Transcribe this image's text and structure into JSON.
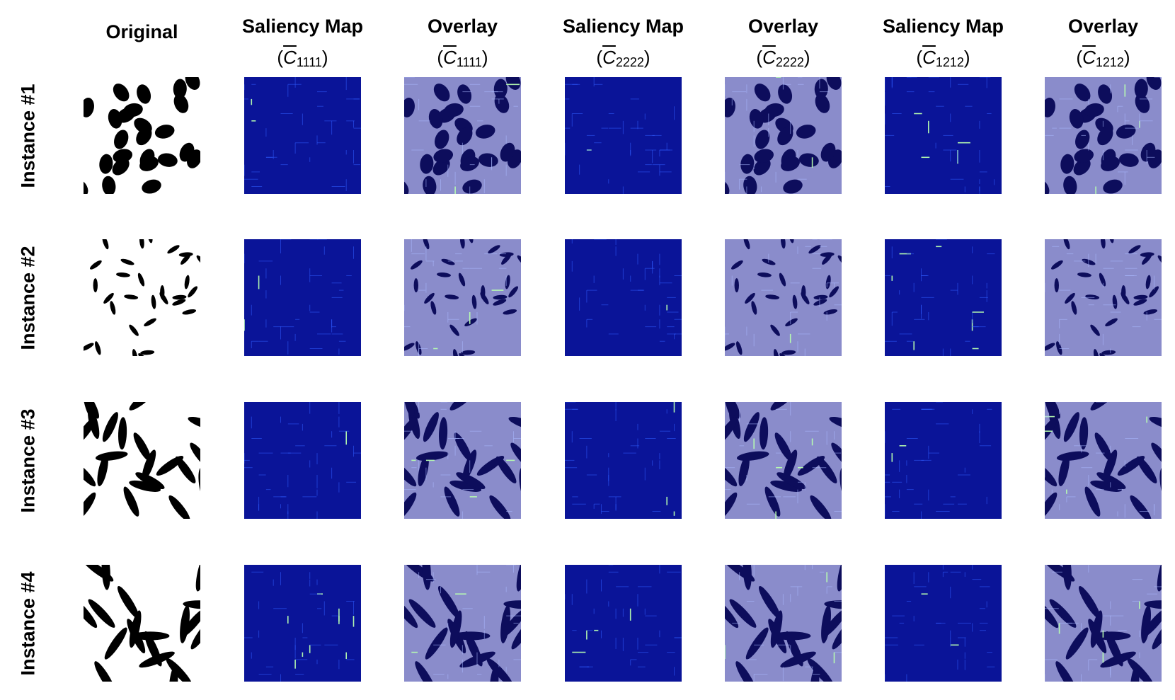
{
  "header": {
    "original": "Original",
    "columns": [
      {
        "title": "Saliency Map",
        "prefix": "(",
        "symbol": "C",
        "index": "1111",
        "suffix": ")"
      },
      {
        "title": "Overlay",
        "prefix": "(",
        "symbol": "C",
        "index": "1111",
        "suffix": ")"
      },
      {
        "title": "Saliency Map",
        "prefix": "(",
        "symbol": "C",
        "index": "2222",
        "suffix": ")"
      },
      {
        "title": "Overlay",
        "prefix": "(",
        "symbol": "C",
        "index": "2222",
        "suffix": ")"
      },
      {
        "title": "Saliency Map",
        "prefix": "(",
        "symbol": "C",
        "index": "1212",
        "suffix": ")"
      },
      {
        "title": "Overlay",
        "prefix": "(",
        "symbol": "C",
        "index": "1212",
        "suffix": ")"
      }
    ]
  },
  "rows": [
    {
      "label": "Instance #1"
    },
    {
      "label": "Instance #2"
    },
    {
      "label": "Instance #3"
    },
    {
      "label": "Instance #4"
    }
  ]
}
